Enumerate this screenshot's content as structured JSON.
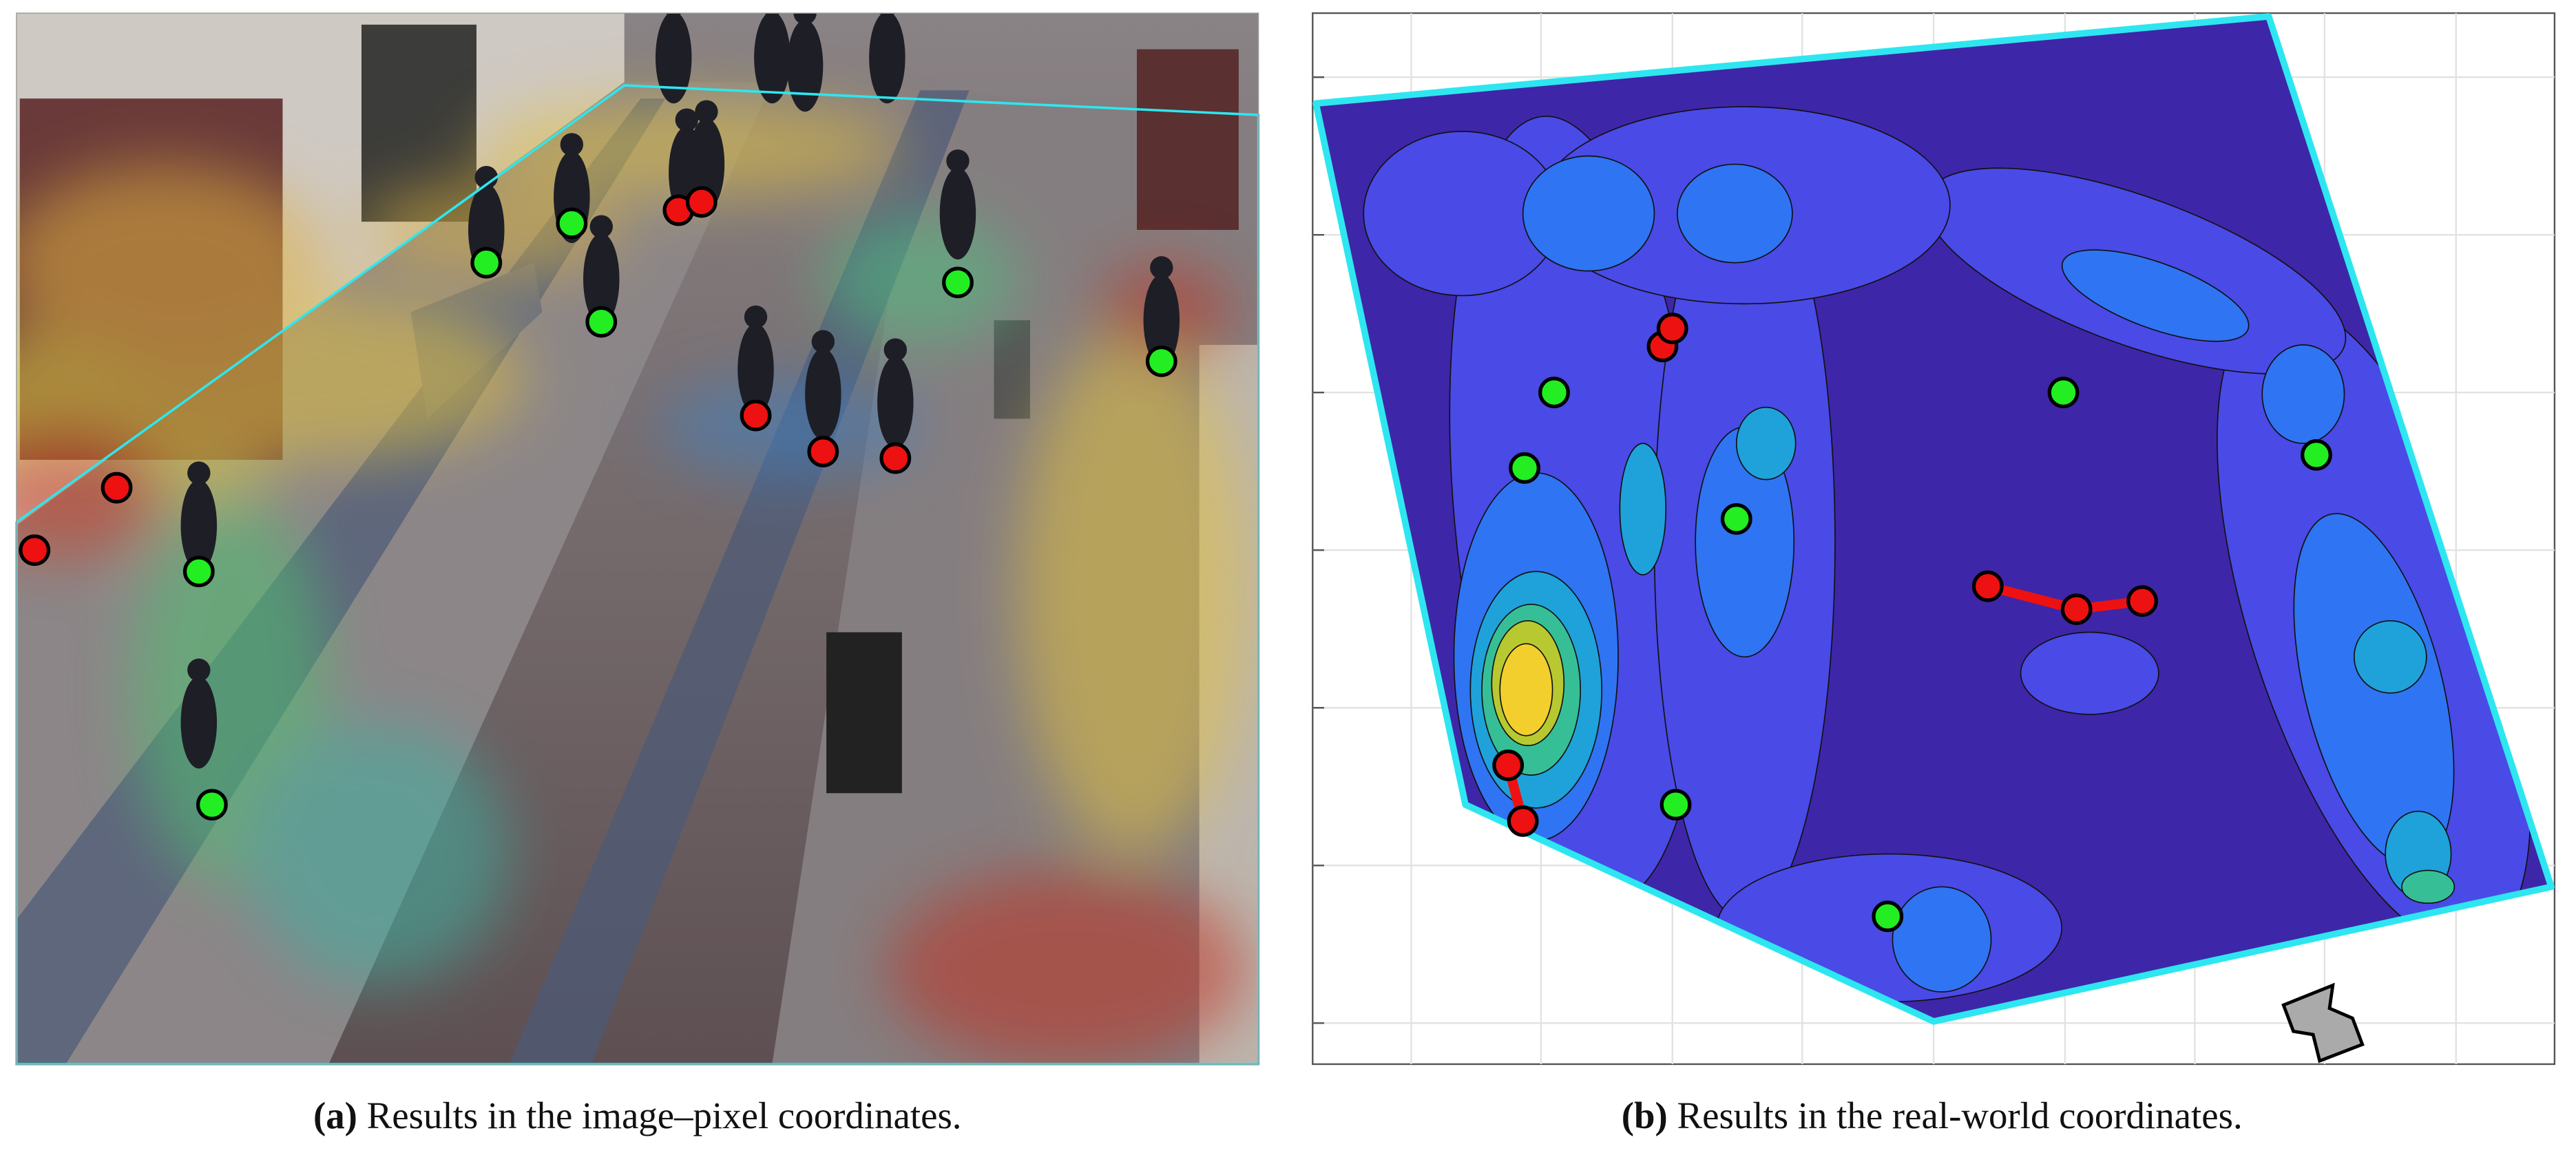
{
  "figure": {
    "panels": [
      {
        "label": "(a)",
        "caption": "Results in the image–pixel coordinates."
      },
      {
        "label": "(b)",
        "caption": "Results in the real-world coordinates."
      }
    ]
  }
}
